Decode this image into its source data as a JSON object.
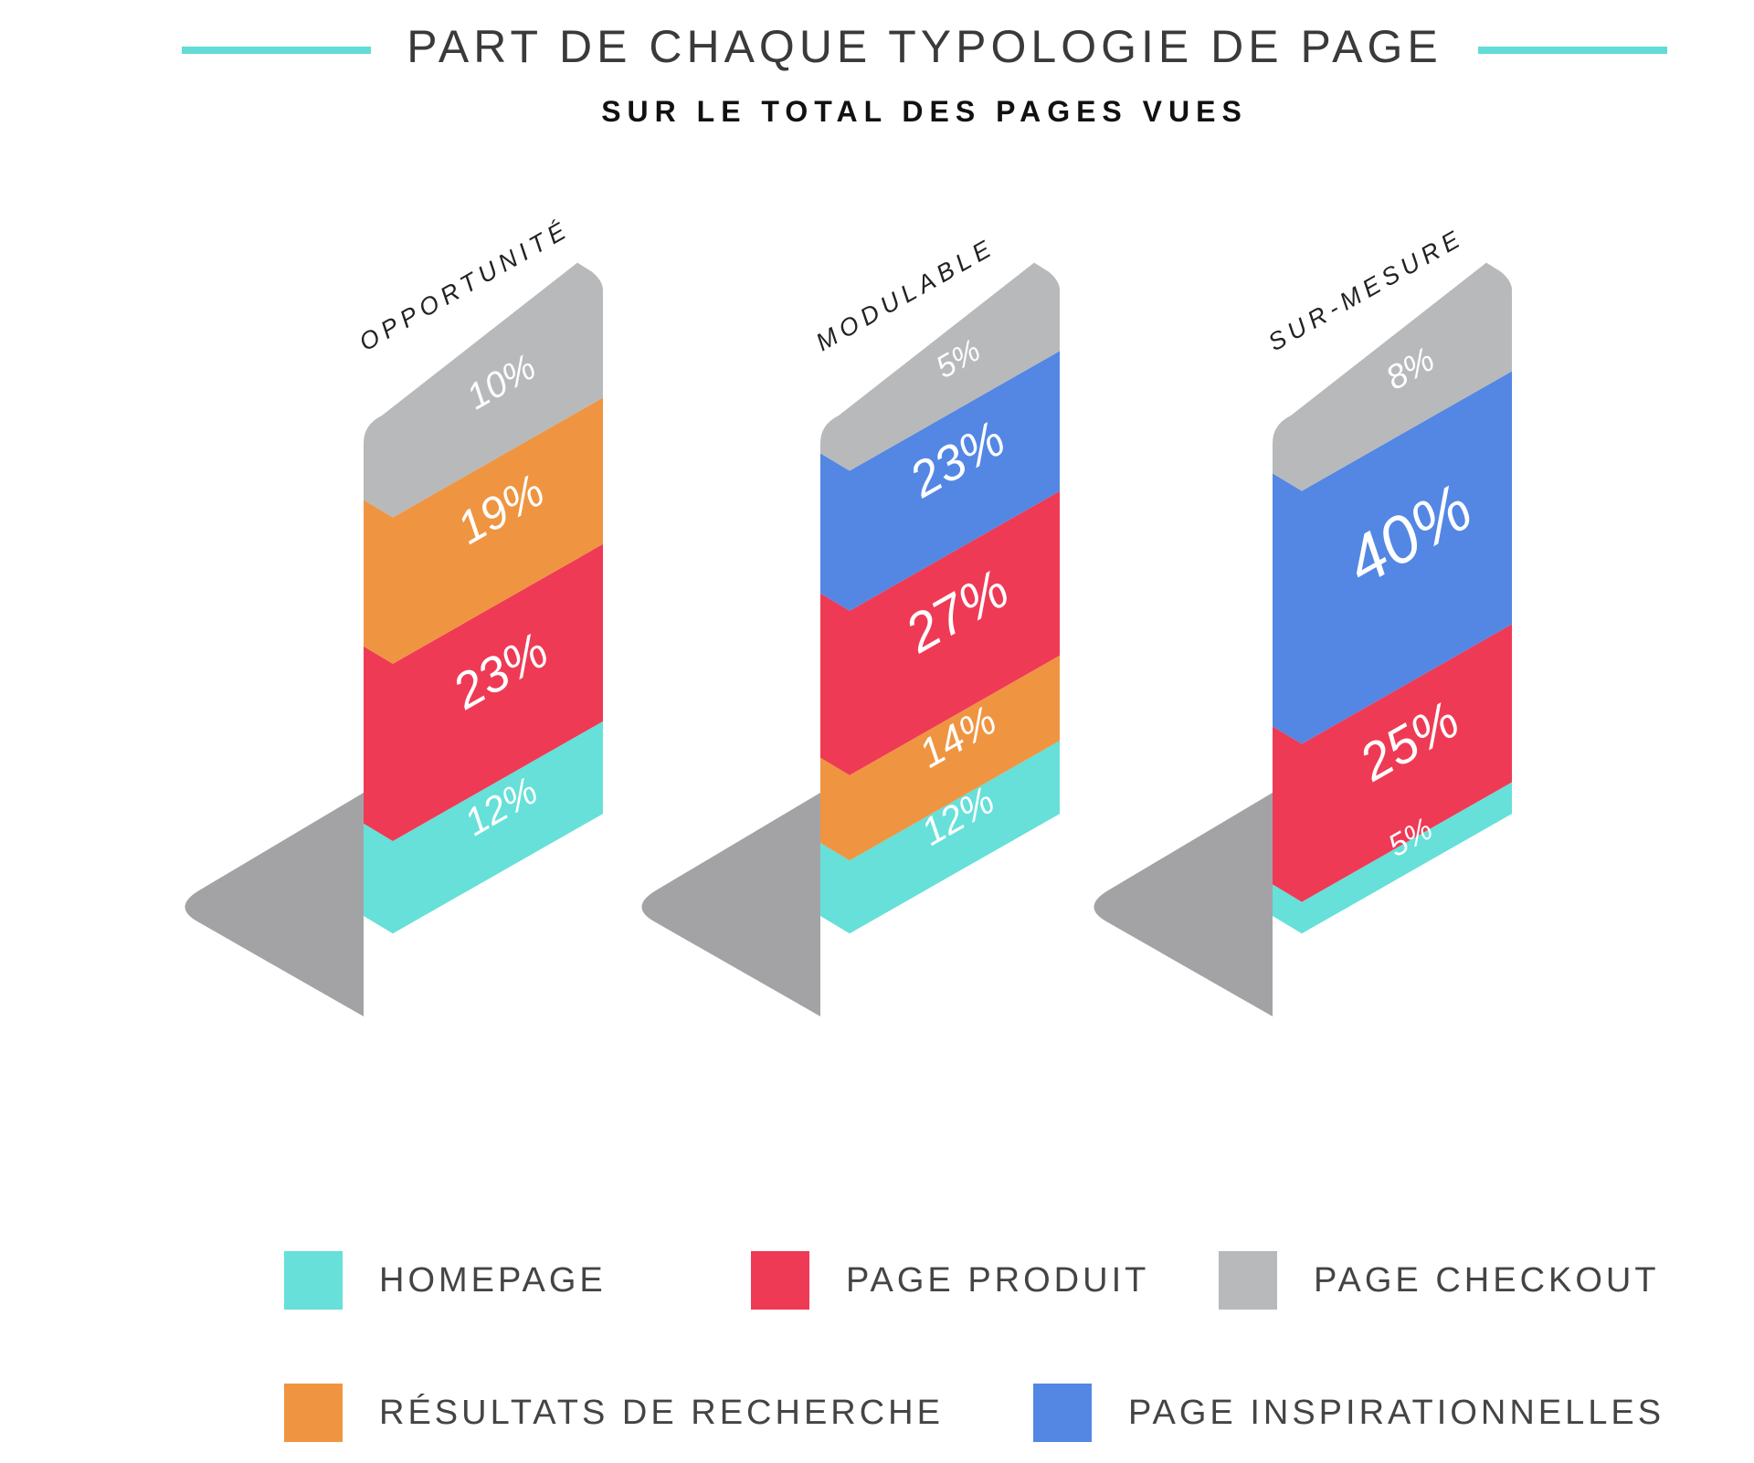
{
  "chart_data": {
    "type": "bar",
    "title": "PART DE CHAQUE TYPOLOGIE DE PAGE",
    "subtitle": "SUR LE TOTAL DES PAGES VUES",
    "categories": [
      "OPPORTUNITÉ",
      "MODULABLE",
      "SUR-MESURE"
    ],
    "stacked": true,
    "series": [
      {
        "name": "HOMEPAGE",
        "key": "homepage",
        "color": "#66e0d9",
        "values": [
          12,
          12,
          5
        ]
      },
      {
        "name": "PAGE PRODUIT",
        "key": "produit",
        "color": "#ef3a55",
        "values": [
          23,
          27,
          25
        ]
      },
      {
        "name": "RÉSULTATS DE RECHERCHE",
        "key": "recherche",
        "color": "#ef9542",
        "values": [
          19,
          14,
          0
        ]
      },
      {
        "name": "PAGE INSPIRATIONNELLES",
        "key": "inspiration",
        "color": "#5387e3",
        "values": [
          0,
          23,
          40
        ]
      },
      {
        "name": "PAGE CHECKOUT",
        "key": "checkout",
        "color": "#b8b9bb",
        "values": [
          10,
          5,
          8
        ]
      }
    ],
    "bars": [
      {
        "category": "OPPORTUNITÉ",
        "stack": [
          {
            "series": "homepage",
            "label": "12%"
          },
          {
            "series": "produit",
            "label": "23%"
          },
          {
            "series": "recherche",
            "label": "19%"
          },
          {
            "series": "checkout",
            "label": "10%"
          }
        ]
      },
      {
        "category": "MODULABLE",
        "stack": [
          {
            "series": "homepage",
            "label": "12%"
          },
          {
            "series": "recherche",
            "label": "14%"
          },
          {
            "series": "produit",
            "label": "27%"
          },
          {
            "series": "inspiration",
            "label": "23%"
          },
          {
            "series": "checkout",
            "label": "5%"
          }
        ]
      },
      {
        "category": "SUR-MESURE",
        "stack": [
          {
            "series": "homepage",
            "label": "5%"
          },
          {
            "series": "produit",
            "label": "25%"
          },
          {
            "series": "inspiration",
            "label": "40%"
          },
          {
            "series": "checkout",
            "label": "8%"
          }
        ]
      }
    ],
    "legend": {
      "placement": "bottom",
      "rows": [
        [
          "homepage",
          "produit",
          "checkout"
        ],
        [
          "recherche",
          "inspiration"
        ]
      ]
    },
    "shadow_color": "#a3a3a6"
  }
}
